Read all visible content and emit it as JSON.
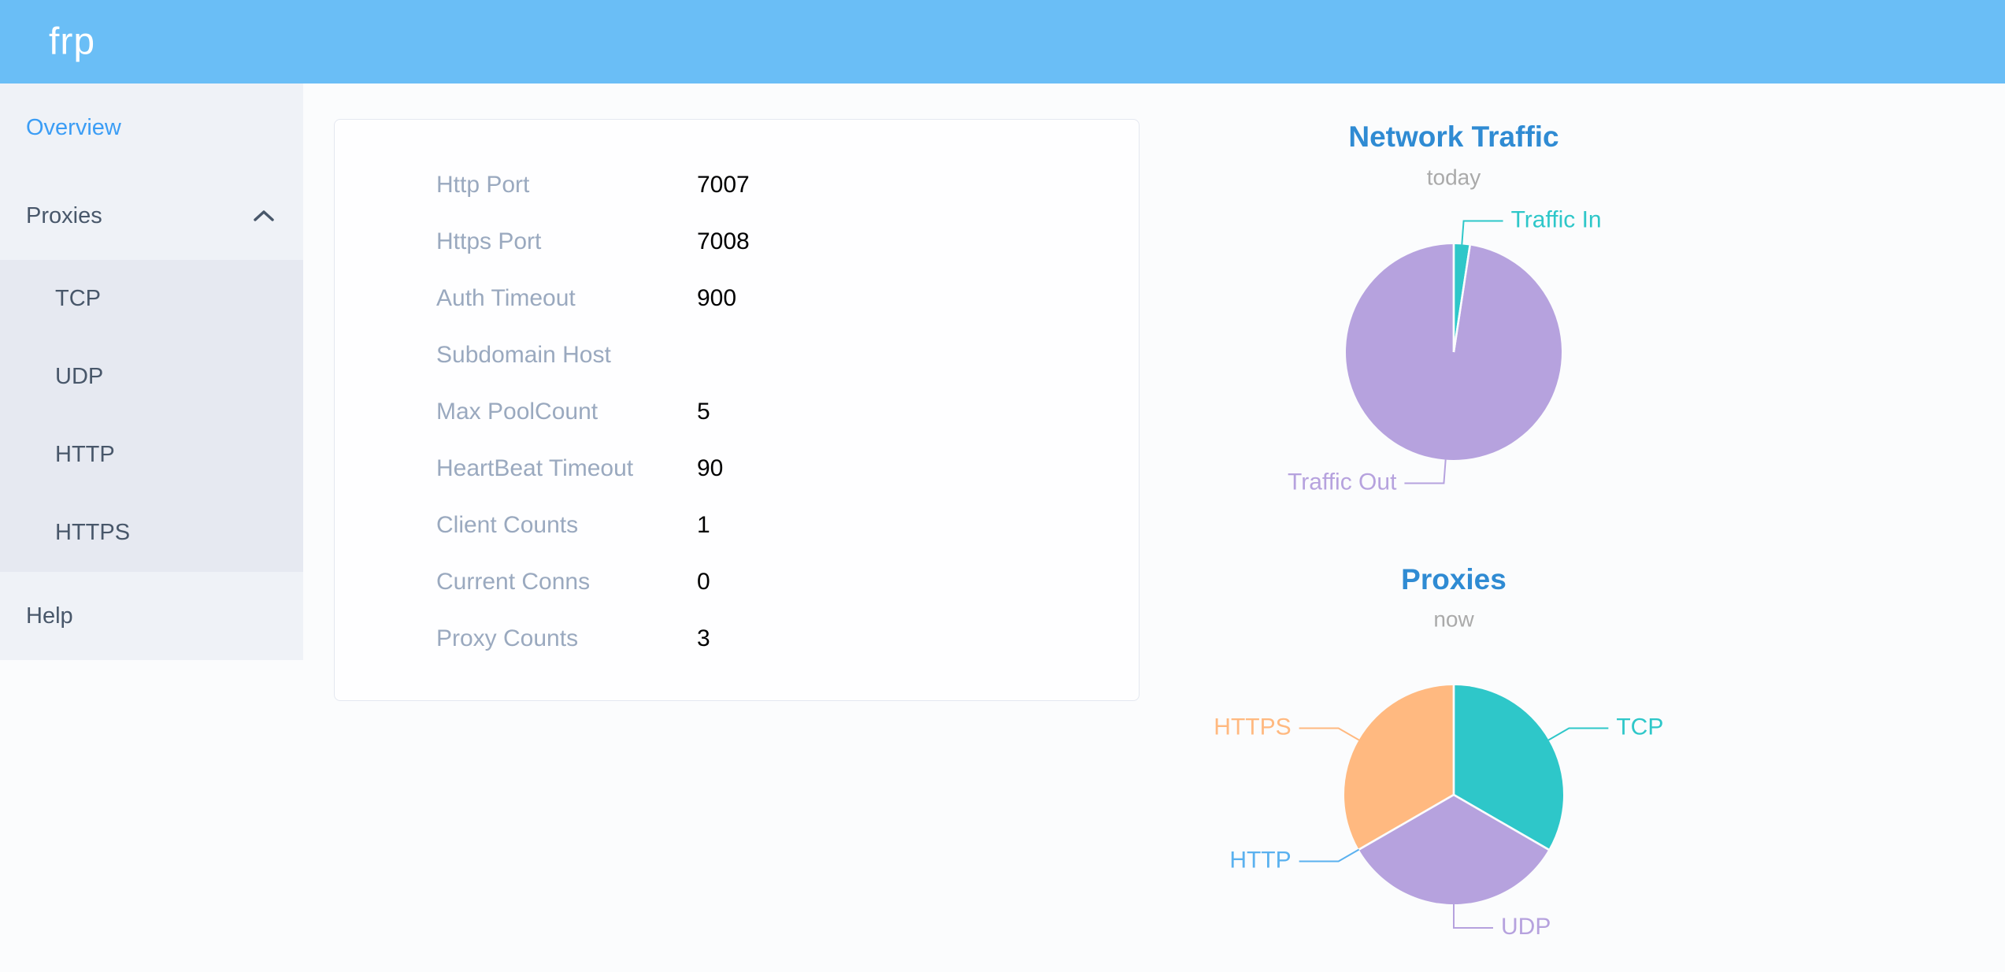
{
  "app": {
    "logo_text": "frp"
  },
  "colors": {
    "header_bg": "#6abef6",
    "sidebar_bg": "#eff2f7",
    "submenu_bg": "#e6e9f1",
    "menu_text": "#48576a",
    "menu_active": "#3b9df5",
    "table_label": "#9aa9bf",
    "table_value": "#000000",
    "chart_title": "#2f8bd3",
    "chart_subtitle": "#aaaaaa",
    "page_bg": "#fbfcfd",
    "teal": "#2ec7c9",
    "purple": "#b6a2de",
    "blue": "#5ab1ef",
    "orange": "#ffb980"
  },
  "sidebar": {
    "items": [
      {
        "label": "Overview",
        "type": "item",
        "active": true
      },
      {
        "label": "Proxies",
        "type": "submenu-header",
        "expanded": true
      },
      {
        "label": "TCP",
        "type": "subitem"
      },
      {
        "label": "UDP",
        "type": "subitem"
      },
      {
        "label": "HTTP",
        "type": "subitem"
      },
      {
        "label": "HTTPS",
        "type": "subitem"
      },
      {
        "label": "Help",
        "type": "item"
      }
    ]
  },
  "overview_table": {
    "rows": [
      {
        "label": "Http Port",
        "value": "7007"
      },
      {
        "label": "Https Port",
        "value": "7008"
      },
      {
        "label": "Auth Timeout",
        "value": "900"
      },
      {
        "label": "Subdomain Host",
        "value": ""
      },
      {
        "label": "Max PoolCount",
        "value": "5"
      },
      {
        "label": "HeartBeat Timeout",
        "value": "90"
      },
      {
        "label": "Client Counts",
        "value": "1"
      },
      {
        "label": "Current Conns",
        "value": "0"
      },
      {
        "label": "Proxy Counts",
        "value": "3"
      }
    ]
  },
  "chart_data": [
    {
      "type": "pie",
      "title": "Network Traffic",
      "subtitle": "today",
      "legend_position": "none",
      "label_style": "outside-with-leader-lines",
      "value_unit": "percent_of_total_estimated_from_arc",
      "series": [
        {
          "name": "Traffic In",
          "value": 2.4,
          "color": "#2ec7c9"
        },
        {
          "name": "Traffic Out",
          "value": 97.6,
          "color": "#b6a2de"
        }
      ]
    },
    {
      "type": "pie",
      "title": "Proxies",
      "subtitle": "now",
      "legend_position": "none",
      "label_style": "outside-with-leader-lines",
      "value_unit": "proxy_count",
      "series": [
        {
          "name": "TCP",
          "value": 1,
          "color": "#2ec7c9"
        },
        {
          "name": "UDP",
          "value": 1,
          "color": "#b6a2de"
        },
        {
          "name": "HTTP",
          "value": 0,
          "color": "#5ab1ef"
        },
        {
          "name": "HTTPS",
          "value": 1,
          "color": "#ffb980"
        }
      ]
    }
  ]
}
